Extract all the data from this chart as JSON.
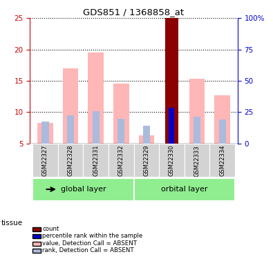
{
  "title": "GDS851 / 1368858_at",
  "samples": [
    "GSM22327",
    "GSM22328",
    "GSM22331",
    "GSM22332",
    "GSM22329",
    "GSM22330",
    "GSM22333",
    "GSM22334"
  ],
  "value_absent": [
    8.3,
    17.0,
    19.5,
    14.5,
    6.3,
    null,
    15.3,
    12.7
  ],
  "rank_absent": [
    8.5,
    9.5,
    10.1,
    8.9,
    7.8,
    null,
    9.2,
    8.8
  ],
  "count_bar": [
    null,
    null,
    null,
    null,
    null,
    25.0,
    null,
    null
  ],
  "percentile_rank": [
    null,
    null,
    null,
    null,
    null,
    10.7,
    null,
    null
  ],
  "ylim_left": [
    5,
    25
  ],
  "ylim_right": [
    0,
    100
  ],
  "yticks_left": [
    5,
    10,
    15,
    20,
    25
  ],
  "yticks_right": [
    0,
    25,
    50,
    75,
    100
  ],
  "ytick_right_labels": [
    "0",
    "25",
    "50",
    "75",
    "100%"
  ],
  "color_count": "#8B0000",
  "color_percentile": "#0000CC",
  "color_value_absent": "#FFB6B6",
  "color_rank_absent": "#AABBDD",
  "group_bg_color": "#90EE90",
  "sample_bg_color": "#D3D3D3",
  "left_axis_color": "#CC0000",
  "right_axis_color": "#0000CC",
  "tissue_label": "tissue",
  "group_ranges": [
    [
      0,
      3,
      "global layer"
    ],
    [
      4,
      7,
      "orbital layer"
    ]
  ],
  "legend_items": [
    [
      "#8B0000",
      "count"
    ],
    [
      "#0000CC",
      "percentile rank within the sample"
    ],
    [
      "#FFB6B6",
      "value, Detection Call = ABSENT"
    ],
    [
      "#AABBDD",
      "rank, Detection Call = ABSENT"
    ]
  ]
}
